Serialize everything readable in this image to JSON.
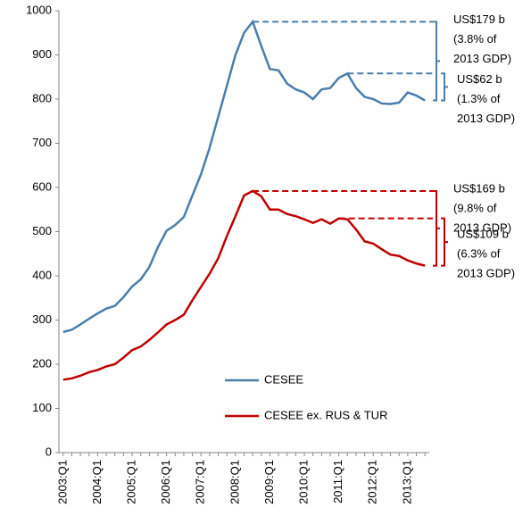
{
  "chart_data": {
    "type": "line",
    "categories": [
      "2003:Q1",
      null,
      null,
      null,
      "2004:Q1",
      null,
      null,
      null,
      "2005:Q1",
      null,
      null,
      null,
      "2006:Q1",
      null,
      null,
      null,
      "2007:Q1",
      null,
      null,
      null,
      "2008:Q1",
      null,
      null,
      null,
      "2009:Q1",
      null,
      null,
      null,
      "2010:Q1",
      null,
      null,
      null,
      "2011:Q1",
      null,
      null,
      null,
      "2012:Q1",
      null,
      null,
      null,
      "2013:Q1",
      null,
      null
    ],
    "series": [
      {
        "name": "CESEE",
        "color": "#4a7eab",
        "values": [
          273,
          278,
          290,
          303,
          315,
          326,
          332,
          352,
          376,
          392,
          420,
          465,
          502,
          515,
          533,
          582,
          630,
          690,
          760,
          830,
          900,
          950,
          975,
          920,
          868,
          865,
          835,
          822,
          815,
          800,
          822,
          825,
          848,
          858,
          825,
          805,
          800,
          790,
          789,
          792,
          815,
          808,
          797
        ]
      },
      {
        "name": "CESEE ex. RUS & TUR",
        "color": "#c00000",
        "values": [
          165,
          168,
          174,
          182,
          187,
          195,
          200,
          215,
          232,
          240,
          255,
          272,
          290,
          300,
          312,
          345,
          375,
          405,
          440,
          490,
          535,
          582,
          592,
          580,
          550,
          550,
          540,
          535,
          528,
          520,
          528,
          518,
          530,
          528,
          505,
          478,
          473,
          460,
          448,
          445,
          435,
          428,
          423
        ]
      }
    ],
    "ylim": [
      0,
      1000
    ],
    "yticks": [
      0,
      100,
      200,
      300,
      400,
      500,
      600,
      700,
      800,
      900,
      1000
    ],
    "grid": false,
    "legend": "bottom",
    "annotations": [
      {
        "series": 0,
        "level": 975,
        "lines": [
          "US$179 b",
          "(3.8% of",
          "2013 GDP)"
        ]
      },
      {
        "series": 0,
        "level": 858,
        "lines": [
          "US$62 b",
          "(1.3% of",
          "2013 GDP)"
        ]
      },
      {
        "series": 1,
        "level": 592,
        "lines": [
          "US$169 b",
          "(9.8% of",
          "2013 GDP)"
        ]
      },
      {
        "series": 1,
        "level": 530,
        "lines": [
          "US$109 b",
          "(6.3% of",
          "2013 GDP)"
        ]
      }
    ]
  }
}
